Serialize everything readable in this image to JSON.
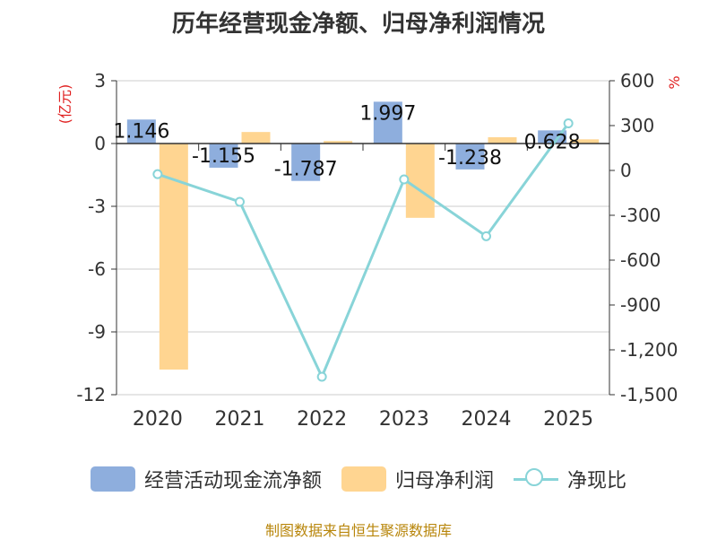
{
  "chart_data": {
    "type": "bar",
    "title": "历年经营现金净额、归母净利润情况",
    "categories": [
      "2020",
      "2021",
      "2022",
      "2023",
      "2024",
      "2025"
    ],
    "series": [
      {
        "name": "经营活动现金流净额",
        "axis": "left",
        "type": "bar",
        "color": "#8eaedd",
        "values": [
          1.146,
          -1.155,
          -1.787,
          1.997,
          -1.238,
          0.628
        ],
        "labels": [
          "1.146",
          "-1.155",
          "-1.787",
          "1.997",
          "-1.238",
          "0.628"
        ]
      },
      {
        "name": "归母净利润",
        "axis": "left",
        "type": "bar",
        "color": "#ffd591",
        "values": [
          -10.8,
          0.55,
          0.12,
          -3.55,
          0.3,
          0.2
        ]
      },
      {
        "name": "净现比",
        "axis": "right",
        "type": "line",
        "color": "#88d4d8",
        "values": [
          -25,
          -210,
          -1380,
          -60,
          -440,
          315
        ]
      }
    ],
    "left_axis": {
      "label": "(亿元)",
      "min": -12,
      "max": 3,
      "ticks": [
        3,
        0,
        -3,
        -6,
        -9,
        -12
      ],
      "tick_labels": [
        "3",
        "0",
        "-3",
        "-6",
        "-9",
        "-12"
      ]
    },
    "right_axis": {
      "label": "%",
      "min": -1500,
      "max": 600,
      "ticks": [
        600,
        300,
        0,
        -300,
        -600,
        -900,
        -1200,
        -1500
      ],
      "tick_labels": [
        "600",
        "300",
        "0",
        "-300",
        "-600",
        "-900",
        "-1,200",
        "-1,500"
      ]
    },
    "grid": true,
    "legend_position": "bottom"
  },
  "source": "制图数据来自恒生聚源数据库"
}
